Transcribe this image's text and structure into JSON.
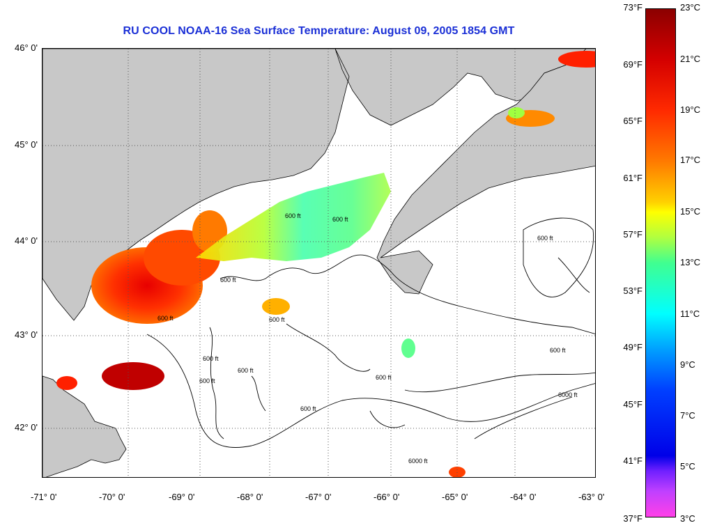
{
  "title": "RU COOL  NOAA-16  Sea Surface Temperature:  August 09, 2005 1854 GMT",
  "map": {
    "lat_labels": [
      "46° 0'",
      "45° 0'",
      "44° 0'",
      "43° 0'",
      "42° 0'"
    ],
    "lon_labels": [
      "-71° 0'",
      "-70° 0'",
      "-69° 0'",
      "-68° 0'",
      "-67° 0'",
      "-66° 0'",
      "-65° 0'",
      "-64° 0'",
      "-63° 0'"
    ],
    "contour_labels": [
      "600 ft",
      "600 ft",
      "600 ft",
      "600 ft",
      "600 ft",
      "600 ft",
      "600 ft",
      "600 ft",
      "600 ft",
      "600 ft",
      "600 ft",
      "6000 ft",
      "6000 ft",
      "600 ft"
    ],
    "colors": {
      "land": "#c8c8c8",
      "grid": "#555555"
    }
  },
  "colorbar": {
    "fahrenheit": [
      "73°F",
      "69°F",
      "65°F",
      "61°F",
      "57°F",
      "53°F",
      "49°F",
      "45°F",
      "41°F",
      "37°F"
    ],
    "celsius": [
      "23°C",
      "21°C",
      "19°C",
      "17°C",
      "15°C",
      "13°C",
      "11°C",
      "9°C",
      "7°C",
      "5°C",
      "3°C"
    ]
  }
}
